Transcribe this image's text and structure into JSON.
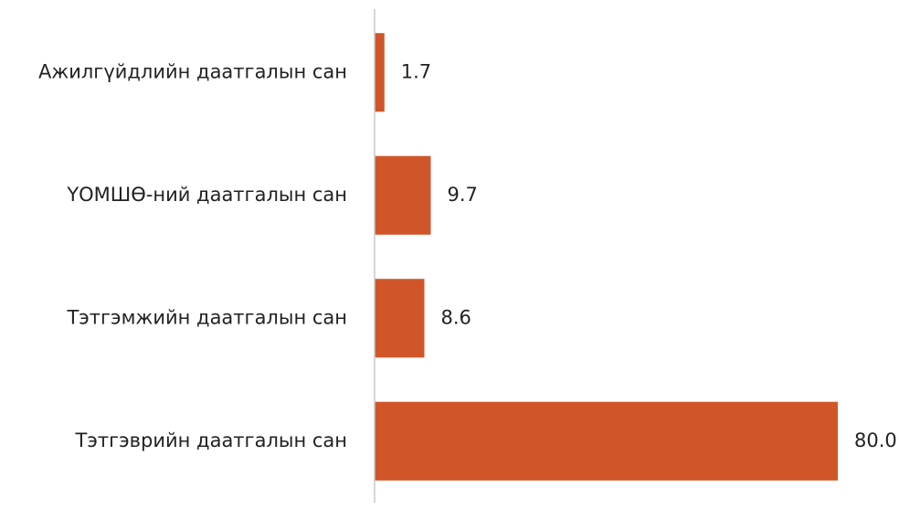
{
  "chart_data": {
    "type": "bar",
    "orientation": "horizontal",
    "categories": [
      "Ажилгүйдлийн даатгалын сан",
      "ҮОМШӨ-ний даатгалын сан",
      "Тэтгэмжийн даатгалын сан",
      "Тэтгэврийн даатгалын сан"
    ],
    "values": [
      1.7,
      9.7,
      8.6,
      80.0
    ],
    "value_labels": [
      "1.7",
      "9.7",
      "8.6",
      "80.0"
    ],
    "color": "#d0562a",
    "xlim": [
      0,
      80
    ]
  }
}
